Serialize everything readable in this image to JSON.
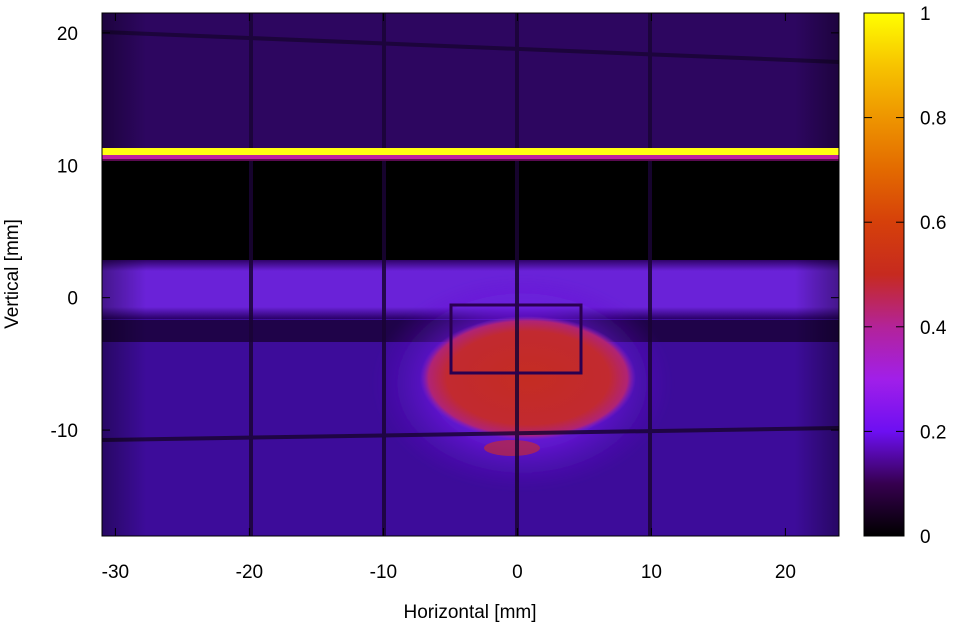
{
  "chart_data": {
    "type": "heatmap",
    "title": "",
    "xlabel": "Horizontal [mm]",
    "ylabel": "Vertical [mm]",
    "xlim": [
      -31,
      24
    ],
    "ylim": [
      -18,
      21.5
    ],
    "x_ticks": [
      -30,
      -20,
      -10,
      0,
      10,
      20
    ],
    "y_ticks": [
      -10,
      0,
      10,
      20
    ],
    "colorbar": {
      "range": [
        0,
        1
      ],
      "ticks": [
        "0",
        "0.2",
        "0.4",
        "0.6",
        "0.8",
        "1"
      ],
      "tick_values": [
        0,
        0.2,
        0.4,
        0.6,
        0.8,
        1
      ],
      "colormap": [
        {
          "value": 0.0,
          "color": "#000000"
        },
        {
          "value": 0.1,
          "color": "#36004f"
        },
        {
          "value": 0.2,
          "color": "#6d0ff2"
        },
        {
          "value": 0.3,
          "color": "#a11fe9"
        },
        {
          "value": 0.4,
          "color": "#b32399"
        },
        {
          "value": 0.5,
          "color": "#c62a1f"
        },
        {
          "value": 0.6,
          "color": "#d6400a"
        },
        {
          "value": 0.7,
          "color": "#e36a00"
        },
        {
          "value": 0.8,
          "color": "#ee9500"
        },
        {
          "value": 0.9,
          "color": "#f7c400"
        },
        {
          "value": 1.0,
          "color": "#ffff00"
        }
      ]
    },
    "regions": [
      {
        "name": "upper band",
        "y_range": [
          11.2,
          21.5
        ],
        "intensity": 0.1
      },
      {
        "name": "bright edge",
        "y_range": [
          10.8,
          11.3
        ],
        "intensity": 1.0
      },
      {
        "name": "dark shadow",
        "y_range": [
          3,
          10.8
        ],
        "intensity": 0.0
      },
      {
        "name": "horizontal band",
        "y_range": [
          -1.5,
          3
        ],
        "intensity": 0.24
      },
      {
        "name": "lower background",
        "y_range": [
          -18,
          -1.5
        ],
        "intensity": 0.16
      },
      {
        "name": "beam spot",
        "center": [
          0,
          -6.5
        ],
        "radius": [
          7.5,
          4.5
        ],
        "intensity": 0.5
      }
    ],
    "grid_lines_x": [
      -20,
      -10,
      0,
      10
    ],
    "grid_lines_y": [
      -10,
      19
    ]
  }
}
